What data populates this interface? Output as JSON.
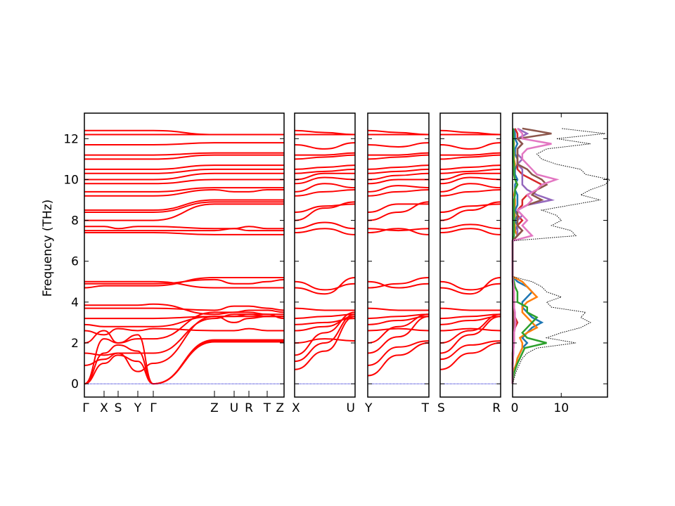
{
  "chart_data": {
    "type": "line",
    "ylabel": "Frequency (THz)",
    "ylim": [
      -0.65,
      13.25
    ],
    "yticks": [
      0,
      2,
      4,
      6,
      8,
      10,
      12
    ],
    "colors": {
      "bands": "#ff0000",
      "zero_line": "#0000cc",
      "dos_total": "#000000"
    },
    "band_panels": [
      {
        "labels": [
          "Γ",
          "X",
          "S",
          "Y",
          "Γ",
          "Z",
          "U",
          "R",
          "T",
          "Z"
        ],
        "bands": [
          [
            0,
            1.0,
            1.4,
            1.1,
            0,
            2.05,
            2.05,
            2.05,
            2.05,
            2.05
          ],
          [
            0,
            1.5,
            1.9,
            1.6,
            0,
            2.1,
            2.1,
            2.1,
            2.1,
            2.1
          ],
          [
            0,
            2.2,
            2.0,
            2.4,
            0,
            2.15,
            2.15,
            2.15,
            2.15,
            2.15
          ],
          [
            0.9,
            1.2,
            1.5,
            0.6,
            1.0,
            3.3,
            3.3,
            3.3,
            3.3,
            3.3
          ],
          [
            1.5,
            1.4,
            1.5,
            1.5,
            1.5,
            3.2,
            3.4,
            3.4,
            3.4,
            3.2
          ],
          [
            2.0,
            2.6,
            2.0,
            2.2,
            2.2,
            3.5,
            3.5,
            3.6,
            3.6,
            3.5
          ],
          [
            2.6,
            2.4,
            2.7,
            2.6,
            2.7,
            2.6,
            2.6,
            2.7,
            2.6,
            2.6
          ],
          [
            2.9,
            2.8,
            2.8,
            2.8,
            2.8,
            3.3,
            3.0,
            3.2,
            3.3,
            3.3
          ],
          [
            3.2,
            3.2,
            3.2,
            3.2,
            3.2,
            3.3,
            3.3,
            3.4,
            3.3,
            3.3
          ],
          [
            3.7,
            3.7,
            3.7,
            3.7,
            3.7,
            3.6,
            3.8,
            3.8,
            3.7,
            3.6
          ],
          [
            3.85,
            3.85,
            3.85,
            3.85,
            3.9,
            3.4,
            3.5,
            3.5,
            3.4,
            3.4
          ],
          [
            4.7,
            4.8,
            4.8,
            4.8,
            4.8,
            5.2,
            5.2,
            5.2,
            5.2,
            5.2
          ],
          [
            4.9,
            4.9,
            4.9,
            4.9,
            4.9,
            5.1,
            4.9,
            4.9,
            5.0,
            5.1
          ],
          [
            5.0,
            5.0,
            5.0,
            5.0,
            5.0,
            4.7,
            4.7,
            4.7,
            4.7,
            4.7
          ],
          [
            7.4,
            7.4,
            7.4,
            7.4,
            7.4,
            7.3,
            7.3,
            7.3,
            7.3,
            7.3
          ],
          [
            7.5,
            7.5,
            7.5,
            7.5,
            7.5,
            7.5,
            7.6,
            7.5,
            7.5,
            7.5
          ],
          [
            7.7,
            7.7,
            7.6,
            7.7,
            7.7,
            7.6,
            7.6,
            7.7,
            7.6,
            7.6
          ],
          [
            8.0,
            8.0,
            8.0,
            8.0,
            8.0,
            8.8,
            8.8,
            8.8,
            8.8,
            8.8
          ],
          [
            8.4,
            8.4,
            8.4,
            8.4,
            8.4,
            8.9,
            8.9,
            8.9,
            8.9,
            8.9
          ],
          [
            8.5,
            8.5,
            8.5,
            8.5,
            8.5,
            9.0,
            9.0,
            9.0,
            9.0,
            9.0
          ],
          [
            9.2,
            9.2,
            9.2,
            9.2,
            9.2,
            9.5,
            9.4,
            9.4,
            9.5,
            9.5
          ],
          [
            9.4,
            9.4,
            9.4,
            9.4,
            9.4,
            9.6,
            9.6,
            9.6,
            9.6,
            9.6
          ],
          [
            9.8,
            9.8,
            9.8,
            9.8,
            9.8,
            10.0,
            10.0,
            10.0,
            10.0,
            10.0
          ],
          [
            10.0,
            10.0,
            10.0,
            10.0,
            10.0,
            10.3,
            10.3,
            10.3,
            10.3,
            10.3
          ],
          [
            10.3,
            10.3,
            10.3,
            10.3,
            10.3,
            10.5,
            10.5,
            10.5,
            10.5,
            10.5
          ],
          [
            10.5,
            10.5,
            10.5,
            10.5,
            10.5,
            10.7,
            10.7,
            10.7,
            10.7,
            10.7
          ],
          [
            11.0,
            11.0,
            11.0,
            11.0,
            11.0,
            11.2,
            11.2,
            11.2,
            11.2,
            11.2
          ],
          [
            11.2,
            11.2,
            11.2,
            11.2,
            11.2,
            11.3,
            11.3,
            11.3,
            11.3,
            11.3
          ],
          [
            11.7,
            11.7,
            11.7,
            11.7,
            11.7,
            11.8,
            11.8,
            11.8,
            11.8,
            11.8
          ],
          [
            12.2,
            12.2,
            12.2,
            12.2,
            12.2,
            12.2,
            12.2,
            12.2,
            12.2,
            12.2
          ],
          [
            12.4,
            12.4,
            12.4,
            12.4,
            12.4,
            12.2,
            12.2,
            12.2,
            12.2,
            12.2
          ]
        ]
      },
      {
        "labels": [
          "X",
          "U"
        ],
        "bands": [
          [
            0.7,
            1.6,
            3.3
          ],
          [
            1.1,
            2.0,
            3.4
          ],
          [
            1.4,
            2.5,
            3.5
          ],
          [
            2.0,
            2.2,
            2.1
          ],
          [
            2.6,
            2.8,
            3.3
          ],
          [
            2.9,
            3.0,
            3.2
          ],
          [
            3.2,
            3.3,
            3.4
          ],
          [
            3.7,
            3.6,
            3.6
          ],
          [
            4.7,
            4.4,
            5.2
          ],
          [
            5.0,
            4.6,
            4.9
          ],
          [
            7.4,
            7.6,
            7.3
          ],
          [
            7.6,
            7.9,
            7.6
          ],
          [
            8.0,
            8.6,
            8.9
          ],
          [
            8.4,
            8.7,
            8.8
          ],
          [
            9.2,
            9.4,
            9.5
          ],
          [
            9.4,
            9.8,
            9.6
          ],
          [
            9.8,
            10.1,
            10.0
          ],
          [
            10.0,
            10.3,
            10.3
          ],
          [
            10.3,
            10.4,
            10.5
          ],
          [
            10.5,
            10.6,
            10.7
          ],
          [
            11.0,
            11.1,
            11.2
          ],
          [
            11.2,
            11.2,
            11.3
          ],
          [
            11.7,
            11.5,
            11.8
          ],
          [
            12.2,
            12.2,
            12.2
          ],
          [
            12.4,
            12.3,
            12.2
          ]
        ]
      },
      {
        "labels": [
          "Y",
          "T"
        ],
        "bands": [
          [
            0.4,
            1.4,
            2.0
          ],
          [
            0.9,
            1.8,
            2.1
          ],
          [
            1.5,
            2.3,
            3.3
          ],
          [
            2.0,
            2.8,
            3.4
          ],
          [
            2.6,
            2.7,
            2.6
          ],
          [
            2.9,
            3.1,
            3.3
          ],
          [
            3.2,
            3.3,
            3.4
          ],
          [
            3.7,
            3.6,
            3.6
          ],
          [
            4.7,
            4.9,
            5.2
          ],
          [
            5.0,
            4.7,
            4.9
          ],
          [
            7.4,
            7.6,
            7.3
          ],
          [
            7.6,
            7.5,
            7.6
          ],
          [
            8.0,
            8.4,
            8.9
          ],
          [
            8.4,
            8.8,
            8.8
          ],
          [
            9.2,
            9.4,
            9.5
          ],
          [
            9.4,
            9.7,
            9.6
          ],
          [
            9.8,
            10.0,
            10.0
          ],
          [
            10.0,
            10.2,
            10.3
          ],
          [
            10.3,
            10.4,
            10.5
          ],
          [
            10.5,
            10.6,
            10.7
          ],
          [
            11.0,
            11.1,
            11.2
          ],
          [
            11.2,
            11.2,
            11.3
          ],
          [
            11.7,
            11.6,
            11.8
          ],
          [
            12.2,
            12.2,
            12.2
          ],
          [
            12.4,
            12.3,
            12.2
          ]
        ]
      },
      {
        "labels": [
          "S",
          "R"
        ],
        "bands": [
          [
            0.7,
            1.5,
            2.0
          ],
          [
            1.2,
            1.9,
            2.1
          ],
          [
            1.5,
            2.4,
            3.3
          ],
          [
            2.0,
            2.6,
            3.4
          ],
          [
            2.6,
            2.7,
            2.6
          ],
          [
            2.9,
            3.1,
            3.3
          ],
          [
            3.2,
            3.3,
            3.4
          ],
          [
            3.7,
            3.6,
            3.6
          ],
          [
            4.7,
            4.4,
            5.2
          ],
          [
            5.0,
            4.6,
            4.9
          ],
          [
            7.4,
            7.6,
            7.3
          ],
          [
            7.6,
            7.8,
            7.6
          ],
          [
            8.0,
            8.5,
            8.9
          ],
          [
            8.4,
            8.7,
            8.8
          ],
          [
            9.2,
            9.4,
            9.5
          ],
          [
            9.4,
            9.8,
            9.6
          ],
          [
            9.8,
            10.1,
            10.0
          ],
          [
            10.0,
            10.3,
            10.3
          ],
          [
            10.3,
            10.4,
            10.5
          ],
          [
            10.5,
            10.6,
            10.7
          ],
          [
            11.0,
            11.1,
            11.2
          ],
          [
            11.2,
            11.2,
            11.3
          ],
          [
            11.7,
            11.5,
            11.8
          ],
          [
            12.2,
            12.2,
            12.2
          ],
          [
            12.4,
            12.3,
            12.2
          ]
        ]
      }
    ],
    "dos": {
      "xlim": [
        0,
        19.5
      ],
      "xticks": [
        0,
        10
      ],
      "frequency_step": 0.25,
      "total": [
        0,
        0.3,
        0.6,
        1,
        1.5,
        2,
        3,
        5,
        13,
        7,
        10,
        14,
        16,
        14,
        15,
        8,
        7,
        10,
        7,
        6,
        4,
        0,
        0,
        0,
        0,
        0,
        0,
        0,
        0,
        13,
        12,
        8,
        10,
        9,
        6,
        12,
        18,
        14,
        16,
        19,
        20,
        15,
        14,
        9,
        6,
        5,
        7,
        16,
        9,
        19,
        10
      ],
      "partials": [
        {
          "color": "#1f77b4",
          "values": [
            0,
            0.1,
            0.2,
            0.4,
            0.8,
            1,
            1.5,
            2,
            3,
            2,
            3,
            4,
            6,
            4,
            3,
            2,
            2,
            3,
            4,
            3,
            1,
            0,
            0,
            0,
            0,
            0,
            0,
            0,
            0,
            1,
            0.5,
            1,
            0.5,
            1,
            0.5,
            1,
            1,
            1,
            0.5,
            0.5,
            1,
            0.5,
            0.5,
            1,
            1,
            0.5,
            0.5,
            1,
            0.5,
            0.5,
            0.3
          ]
        },
        {
          "color": "#ff7f0e",
          "values": [
            0,
            0.1,
            0.2,
            0.4,
            0.8,
            1,
            1.5,
            2,
            2,
            1.5,
            3,
            5,
            4,
            3,
            2,
            2,
            3,
            5,
            4,
            3,
            2,
            0,
            0,
            0,
            0,
            0,
            0,
            0,
            0,
            1,
            0.5,
            0.5,
            0.3,
            0.5,
            0.3,
            0.5,
            0.5,
            0.3,
            0.5,
            1,
            0.5,
            0.3,
            0.3,
            0.5,
            0.3,
            0.3,
            0.2,
            0.3,
            0.2,
            0.2,
            0.1
          ]
        },
        {
          "color": "#2ca02c",
          "values": [
            0,
            0.1,
            0.3,
            0.6,
            1,
            1.5,
            2,
            2.5,
            7,
            3,
            2,
            3,
            4,
            5,
            3,
            3,
            1,
            1,
            1,
            0.5,
            0.3,
            0,
            0,
            0,
            0,
            0,
            0,
            0,
            0,
            0.3,
            0.3,
            0.3,
            0.3,
            0.3,
            0.3,
            0.3,
            0.3,
            0.5,
            0.5,
            1,
            0.5,
            0.3,
            0.3,
            0.3,
            0.2,
            0.2,
            0.2,
            0.2,
            0.2,
            0.2,
            0.1
          ]
        },
        {
          "color": "#d62728",
          "values": [
            0,
            0,
            0,
            0,
            0,
            0.1,
            0.1,
            0.2,
            0.3,
            0.3,
            0.3,
            0.5,
            1,
            0.5,
            0.3,
            0.3,
            0.3,
            0.3,
            0.3,
            0.2,
            0.1,
            0,
            0,
            0,
            0,
            0,
            0,
            0,
            0,
            1,
            2,
            1,
            2,
            1,
            1,
            2,
            2,
            3,
            5,
            6,
            4,
            2,
            1,
            1,
            1,
            1,
            1,
            2,
            1,
            1,
            0.5
          ]
        },
        {
          "color": "#9467bd",
          "values": [
            0,
            0,
            0,
            0,
            0,
            0.1,
            0.1,
            0.1,
            0.2,
            0.2,
            0.2,
            0.3,
            0.3,
            0.3,
            0.3,
            0.3,
            0.2,
            0.2,
            0.2,
            0.1,
            0.1,
            0,
            0,
            0,
            0,
            0,
            0,
            0,
            0,
            1,
            1,
            1,
            1,
            2,
            1,
            3,
            8,
            5,
            3,
            2,
            2,
            2,
            2,
            1,
            2,
            1,
            1,
            2,
            1,
            3,
            1
          ]
        },
        {
          "color": "#8c564b",
          "values": [
            0,
            0,
            0,
            0,
            0,
            0,
            0,
            0.1,
            0.1,
            0.1,
            0.1,
            0.2,
            0.2,
            0.2,
            0.2,
            0.2,
            0.1,
            0.1,
            0.1,
            0.1,
            0,
            0,
            0,
            0,
            0,
            0,
            0,
            0,
            0,
            1,
            2,
            1,
            1,
            1,
            1,
            3,
            6,
            4,
            5,
            7,
            6,
            4,
            3,
            1,
            1,
            1,
            1,
            2,
            1,
            8,
            2
          ]
        },
        {
          "color": "#e377c2",
          "values": [
            0,
            0,
            0,
            0,
            0.1,
            0.1,
            0.2,
            0.2,
            0.3,
            0.3,
            0.3,
            0.5,
            0.6,
            0.5,
            0.5,
            0.3,
            0.3,
            0.3,
            0.3,
            0.2,
            0.1,
            0,
            0,
            0,
            0,
            0,
            0,
            0,
            0,
            4,
            3,
            2,
            3,
            2,
            1,
            3,
            4,
            3,
            5,
            6,
            9,
            5,
            4,
            3,
            2,
            2,
            3,
            8,
            2,
            2,
            1
          ]
        }
      ]
    }
  }
}
